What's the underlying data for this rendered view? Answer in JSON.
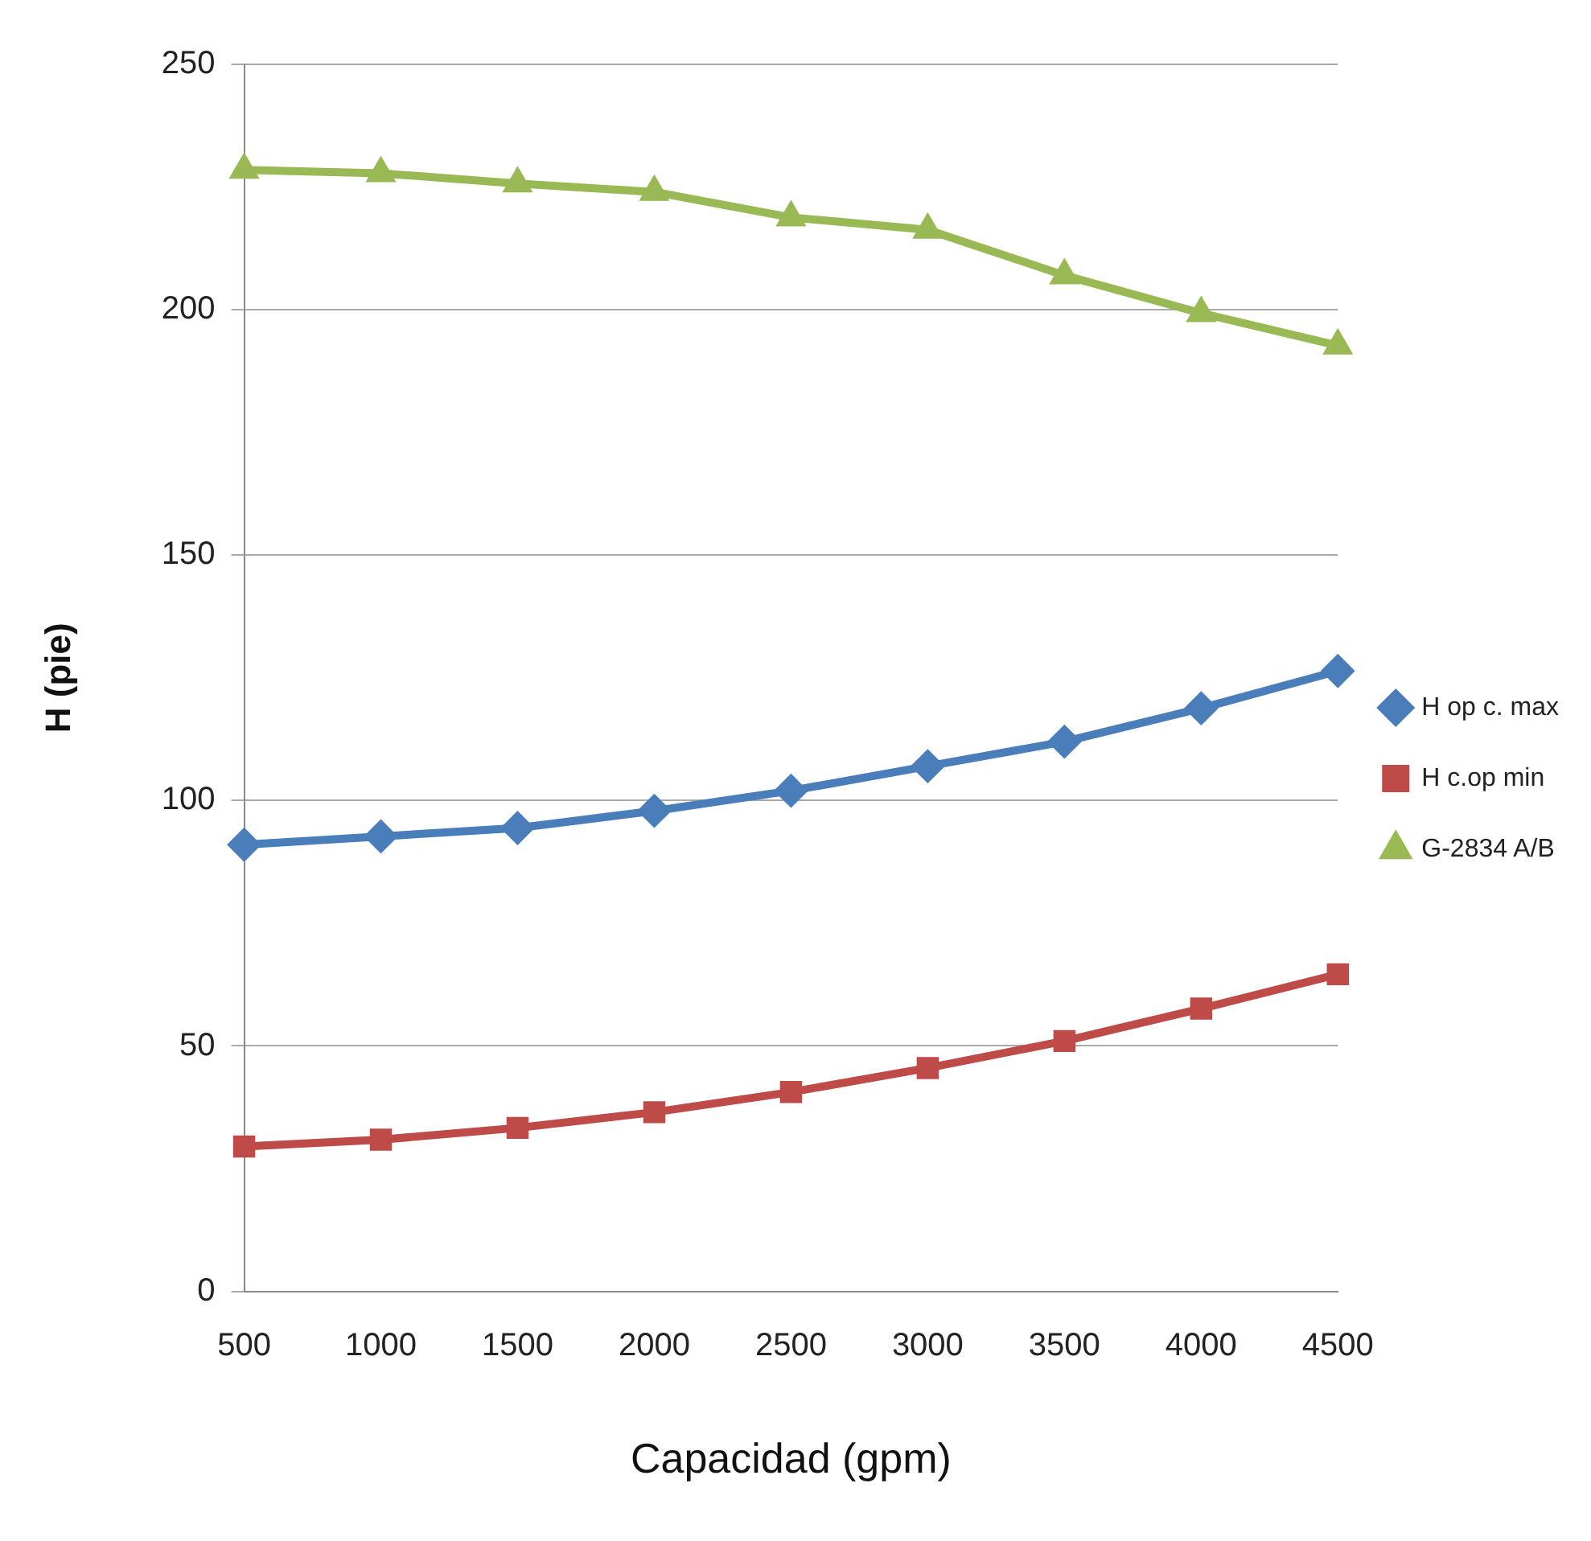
{
  "chart_data": {
    "type": "line",
    "xlabel": "Capacidad (gpm)",
    "ylabel": "H (pie)",
    "categories": [
      "500",
      "1000",
      "1500",
      "2000",
      "2500",
      "3000",
      "3500",
      "4000",
      "4500"
    ],
    "ylim": [
      0,
      250
    ],
    "yticks": [
      0,
      50,
      100,
      150,
      200,
      250
    ],
    "grid": "y",
    "legend": "right",
    "line_style": "solid",
    "series": [
      {
        "name": "H op c. max",
        "color": "#4a7ebb",
        "marker": "diamond",
        "values": [
          91,
          92.7,
          94.4,
          97.9,
          102,
          107,
          112,
          118.8,
          126.4
        ]
      },
      {
        "name": "H c.op min",
        "color": "#be4b48",
        "marker": "square",
        "values": [
          29.5,
          30.9,
          33.3,
          36.5,
          40.6,
          45.5,
          51,
          57.6,
          64.6
        ]
      },
      {
        "name": "G-2834 A/B",
        "color": "#98b954",
        "marker": "triangle",
        "values": [
          228.5,
          227.8,
          225.7,
          224,
          218.8,
          216.3,
          207,
          199.3,
          192.7
        ]
      }
    ]
  }
}
